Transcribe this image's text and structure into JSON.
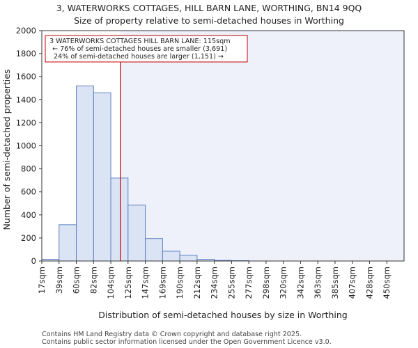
{
  "chart_data": {
    "type": "bar",
    "title": "3, WATERWORKS COTTAGES, HILL BARN LANE, WORTHING, BN14 9QQ",
    "subtitle": "Size of property relative to semi-detached houses in Worthing",
    "xlabel": "Distribution of semi-detached houses by size in Worthing",
    "ylabel": "Number of semi-detached properties",
    "categories": [
      "17sqm",
      "39sqm",
      "60sqm",
      "82sqm",
      "104sqm",
      "125sqm",
      "147sqm",
      "169sqm",
      "190sqm",
      "212sqm",
      "234sqm",
      "255sqm",
      "277sqm",
      "298sqm",
      "320sqm",
      "342sqm",
      "363sqm",
      "385sqm",
      "407sqm",
      "428sqm",
      "450sqm"
    ],
    "values": [
      15,
      315,
      1520,
      1460,
      720,
      485,
      195,
      85,
      50,
      15,
      5,
      3,
      0,
      0,
      0,
      0,
      0,
      0,
      0,
      0,
      0
    ],
    "ylim": [
      0,
      2000
    ],
    "yticks": [
      0,
      200,
      400,
      600,
      800,
      1000,
      1200,
      1400,
      1600,
      1800,
      2000
    ],
    "property_line_bin_position": 4.55,
    "annotation": {
      "line1": "3 WATERWORKS COTTAGES HILL BARN LANE: 115sqm",
      "line2": "← 76% of semi-detached houses are smaller (3,691)",
      "line3": "24% of semi-detached houses are larger (1,151) →"
    },
    "colors": {
      "bar_fill": "#dbe4f5",
      "bar_stroke": "#5b7fbf",
      "property_line": "#c00000",
      "highlight_band": "#eef1fa"
    }
  },
  "footer": {
    "line1": "Contains HM Land Registry data © Crown copyright and database right 2025.",
    "line2": "Contains public sector information licensed under the Open Government Licence v3.0."
  }
}
